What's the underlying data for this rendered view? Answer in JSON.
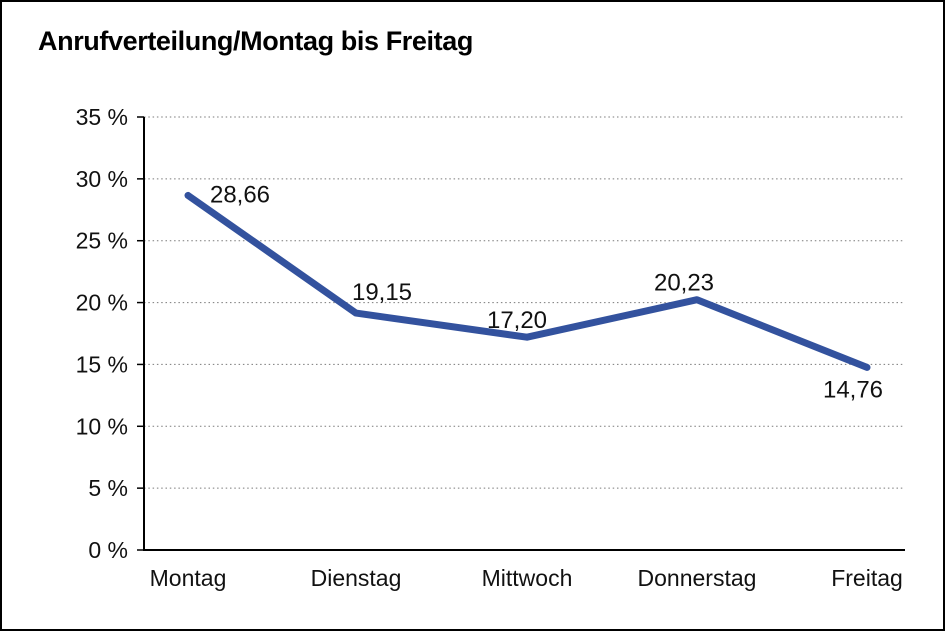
{
  "chart_data": {
    "type": "line",
    "title": "Anrufverteilung/Montag bis Freitag",
    "categories": [
      "Montag",
      "Dienstag",
      "Mittwoch",
      "Donnerstag",
      "Freitag"
    ],
    "values": [
      28.66,
      19.15,
      17.2,
      20.23,
      14.76
    ],
    "data_labels": [
      "28,66",
      "19,15",
      "17,20",
      "20,23",
      "14,76"
    ],
    "xlabel": "",
    "ylabel": "",
    "ylim": [
      0,
      35
    ],
    "y_tick_step": 5,
    "y_tick_labels": [
      "0 %",
      "5 %",
      "10 %",
      "15 %",
      "20 %",
      "25 %",
      "30 %",
      "35 %"
    ],
    "grid": true,
    "legend": false,
    "colors": {
      "line": "#33529E",
      "grid": "#7a7a7a",
      "axis": "#000000",
      "text": "#111111",
      "frame": "#000000",
      "background": "#ffffff"
    }
  }
}
